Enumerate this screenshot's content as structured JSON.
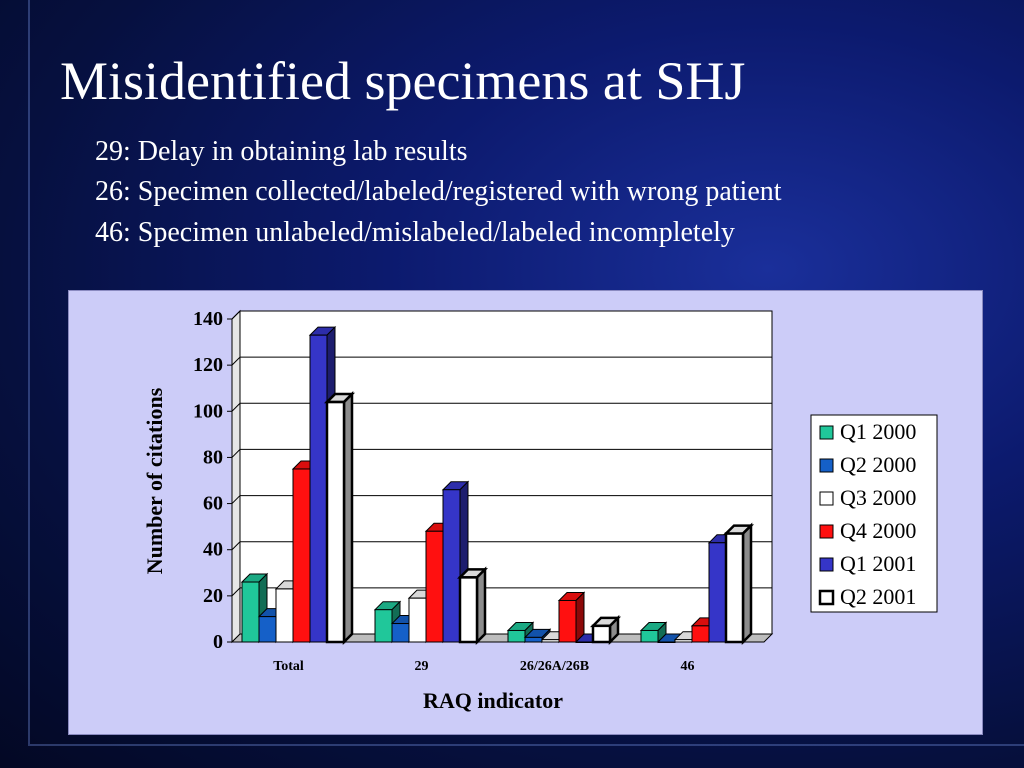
{
  "slide": {
    "title": "Misidentified specimens at SHJ",
    "lines": [
      "29: Delay in obtaining lab results",
      "26: Specimen collected/labeled/registered with wrong patient",
      "46: Specimen unlabeled/mislabeled/labeled incompletely"
    ]
  },
  "chart_data": {
    "type": "bar",
    "xlabel": "RAQ indicator",
    "ylabel": "Number of citations",
    "ylim": [
      0,
      140
    ],
    "yticks": [
      0,
      20,
      40,
      60,
      80,
      100,
      120,
      140
    ],
    "grid": true,
    "legend": "right",
    "categories": [
      "Total",
      "29",
      "26/26A/26B",
      "46"
    ],
    "series": [
      {
        "name": "Q1 2000",
        "color": "#20c79a",
        "values": [
          26,
          14,
          5,
          5
        ]
      },
      {
        "name": "Q2 2000",
        "color": "#1560c8",
        "values": [
          11,
          8,
          2,
          0
        ]
      },
      {
        "name": "Q3 2000",
        "color": "#ffffff",
        "values": [
          23,
          19,
          1,
          1
        ]
      },
      {
        "name": "Q4 2000",
        "color": "#ff1010",
        "values": [
          75,
          48,
          18,
          7
        ]
      },
      {
        "name": "Q1 2001",
        "color": "#3535c8",
        "values": [
          133,
          66,
          0,
          43
        ]
      },
      {
        "name": "Q2 2001",
        "color": "#ffffff",
        "values": [
          104,
          28,
          7,
          47
        ]
      }
    ]
  }
}
